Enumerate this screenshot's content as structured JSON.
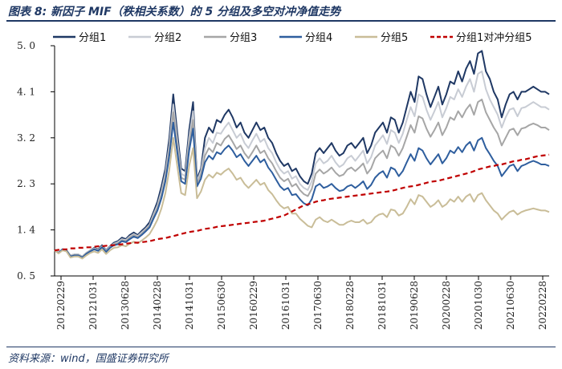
{
  "header": {
    "title": "图表 8:  新因子 MIF（秩相关系数）的 5 分组及多空对冲净值走势"
  },
  "footer": {
    "source": "资料来源：wind，国盛证券研究所"
  },
  "chart_data": {
    "type": "line",
    "title": "新因子 MIF（秩相关系数）的 5 分组及多空对冲净值走势",
    "ylim": [
      0.5,
      5.0
    ],
    "yticks": [
      "5. 0",
      "4. 1",
      "3. 2",
      "2. 3",
      "1. 4",
      "0. 5"
    ],
    "ytick_values": [
      5.0,
      4.1,
      3.2,
      2.3,
      1.4,
      0.5
    ],
    "xticks": [
      "20120229",
      "20121031",
      "20130628",
      "20140228",
      "20141031",
      "20150630",
      "20160229",
      "20161031",
      "20170630",
      "20180228",
      "20181031",
      "20190628",
      "20200228",
      "20201030",
      "20210630",
      "20220228"
    ],
    "x": [
      0,
      1,
      2,
      3,
      4,
      5,
      6,
      7,
      8,
      9,
      10,
      11,
      12,
      13,
      14,
      15,
      16,
      17,
      18,
      19,
      20,
      21,
      22,
      23,
      24,
      25,
      26,
      27,
      28,
      29,
      30,
      31,
      32,
      33,
      34,
      35,
      36,
      37,
      38,
      39,
      40,
      41,
      42,
      43,
      44,
      45,
      46,
      47,
      48,
      49,
      50,
      51,
      52,
      53,
      54,
      55,
      56,
      57,
      58,
      59,
      60,
      61,
      62,
      63,
      64,
      65,
      66,
      67,
      68,
      69,
      70,
      71,
      72,
      73,
      74,
      75,
      76,
      77,
      78,
      79,
      80,
      81,
      82,
      83,
      84,
      85,
      86,
      87,
      88,
      89,
      90,
      91,
      92,
      93,
      94,
      95,
      96,
      97,
      98,
      99,
      100,
      101,
      102,
      103,
      104,
      105,
      106,
      107,
      108,
      109,
      110,
      111,
      112,
      113,
      114,
      115,
      116,
      117,
      118,
      119,
      120,
      121,
      122,
      123,
      124,
      125
    ],
    "series": [
      {
        "name": "分组1",
        "color": "#1f3864",
        "dash": false,
        "values": [
          1.0,
          0.95,
          1.02,
          1.0,
          0.9,
          0.92,
          0.92,
          0.88,
          0.95,
          1.0,
          1.05,
          1.02,
          1.1,
          1.0,
          1.08,
          1.15,
          1.18,
          1.25,
          1.22,
          1.3,
          1.35,
          1.3,
          1.38,
          1.45,
          1.55,
          1.75,
          1.95,
          2.25,
          2.6,
          3.2,
          4.05,
          3.3,
          2.6,
          2.55,
          3.35,
          3.9,
          2.4,
          2.6,
          3.2,
          3.4,
          3.3,
          3.55,
          3.5,
          3.65,
          3.75,
          3.6,
          3.4,
          3.5,
          3.3,
          3.2,
          3.35,
          3.5,
          3.35,
          3.4,
          3.2,
          3.1,
          2.9,
          2.75,
          2.65,
          2.7,
          2.55,
          2.6,
          2.45,
          2.35,
          2.3,
          2.5,
          2.9,
          3.0,
          2.9,
          3.0,
          3.1,
          2.95,
          2.85,
          2.9,
          3.05,
          3.1,
          3.0,
          3.1,
          3.2,
          2.9,
          3.05,
          3.3,
          3.4,
          3.5,
          3.3,
          3.6,
          3.55,
          3.3,
          3.5,
          3.8,
          4.1,
          3.9,
          4.4,
          4.35,
          4.05,
          3.8,
          4.0,
          4.2,
          3.85,
          4.05,
          4.3,
          4.25,
          4.5,
          4.3,
          4.55,
          4.7,
          4.45,
          4.85,
          4.9,
          4.5,
          4.35,
          4.1,
          3.95,
          3.6,
          3.85,
          4.05,
          4.1,
          3.95,
          4.1,
          4.1,
          4.15,
          4.2,
          4.15,
          4.1,
          4.1,
          4.05
        ]
      },
      {
        "name": "分组2",
        "color": "#c8ccd4",
        "dash": false,
        "values": [
          1.0,
          0.95,
          1.02,
          1.0,
          0.9,
          0.92,
          0.92,
          0.88,
          0.95,
          1.0,
          1.04,
          1.01,
          1.08,
          0.99,
          1.07,
          1.13,
          1.16,
          1.22,
          1.2,
          1.27,
          1.32,
          1.28,
          1.35,
          1.42,
          1.5,
          1.7,
          1.88,
          2.15,
          2.5,
          3.05,
          3.85,
          3.15,
          2.5,
          2.45,
          3.2,
          3.72,
          2.35,
          2.55,
          3.0,
          3.2,
          3.1,
          3.3,
          3.28,
          3.4,
          3.5,
          3.35,
          3.2,
          3.28,
          3.1,
          3.0,
          3.15,
          3.28,
          3.12,
          3.18,
          3.0,
          2.9,
          2.72,
          2.58,
          2.5,
          2.55,
          2.4,
          2.45,
          2.3,
          2.22,
          2.18,
          2.35,
          2.7,
          2.8,
          2.7,
          2.75,
          2.85,
          2.72,
          2.63,
          2.68,
          2.8,
          2.85,
          2.75,
          2.85,
          2.95,
          2.7,
          2.82,
          3.05,
          3.15,
          3.25,
          3.08,
          3.35,
          3.3,
          3.1,
          3.28,
          3.55,
          3.8,
          3.62,
          4.05,
          4.0,
          3.75,
          3.55,
          3.72,
          3.9,
          3.6,
          3.78,
          4.0,
          3.95,
          4.15,
          4.0,
          4.2,
          4.35,
          4.1,
          4.45,
          4.5,
          4.15,
          3.95,
          3.8,
          3.65,
          3.4,
          3.6,
          3.75,
          3.78,
          3.62,
          3.78,
          3.8,
          3.85,
          3.9,
          3.85,
          3.8,
          3.8,
          3.75
        ]
      },
      {
        "name": "分组3",
        "color": "#a6a6a6",
        "dash": false,
        "values": [
          1.0,
          0.95,
          1.02,
          1.0,
          0.89,
          0.91,
          0.91,
          0.87,
          0.94,
          0.99,
          1.03,
          1.0,
          1.07,
          0.98,
          1.06,
          1.12,
          1.14,
          1.2,
          1.18,
          1.25,
          1.3,
          1.26,
          1.32,
          1.4,
          1.48,
          1.66,
          1.83,
          2.08,
          2.42,
          2.95,
          3.7,
          3.05,
          2.42,
          2.38,
          3.08,
          3.55,
          2.3,
          2.48,
          2.85,
          3.0,
          2.92,
          3.1,
          3.05,
          3.18,
          3.25,
          3.12,
          2.98,
          3.05,
          2.9,
          2.8,
          2.92,
          3.05,
          2.9,
          2.95,
          2.8,
          2.7,
          2.55,
          2.42,
          2.35,
          2.4,
          2.25,
          2.3,
          2.18,
          2.1,
          2.06,
          2.2,
          2.5,
          2.58,
          2.5,
          2.55,
          2.62,
          2.52,
          2.45,
          2.48,
          2.58,
          2.62,
          2.55,
          2.62,
          2.7,
          2.5,
          2.6,
          2.8,
          2.88,
          2.95,
          2.8,
          3.05,
          3.0,
          2.85,
          3.0,
          3.22,
          3.45,
          3.3,
          3.62,
          3.58,
          3.38,
          3.22,
          3.35,
          3.5,
          3.25,
          3.4,
          3.6,
          3.55,
          3.72,
          3.6,
          3.75,
          3.85,
          3.65,
          3.9,
          3.95,
          3.7,
          3.55,
          3.4,
          3.28,
          3.05,
          3.2,
          3.35,
          3.38,
          3.25,
          3.38,
          3.4,
          3.45,
          3.48,
          3.45,
          3.4,
          3.4,
          3.35
        ]
      },
      {
        "name": "分组4",
        "color": "#2e5e9e",
        "dash": false,
        "values": [
          1.0,
          0.95,
          1.02,
          1.0,
          0.88,
          0.9,
          0.9,
          0.86,
          0.93,
          0.98,
          1.02,
          0.99,
          1.06,
          0.97,
          1.05,
          1.1,
          1.12,
          1.18,
          1.16,
          1.22,
          1.27,
          1.24,
          1.3,
          1.37,
          1.45,
          1.62,
          1.78,
          2.02,
          2.35,
          2.85,
          3.5,
          2.92,
          2.35,
          2.3,
          2.95,
          3.38,
          2.25,
          2.4,
          2.72,
          2.85,
          2.78,
          2.92,
          2.88,
          2.98,
          3.05,
          2.95,
          2.82,
          2.88,
          2.75,
          2.65,
          2.75,
          2.85,
          2.72,
          2.78,
          2.62,
          2.52,
          2.38,
          2.25,
          2.18,
          2.22,
          2.08,
          2.1,
          2.0,
          1.92,
          1.88,
          2.0,
          2.25,
          2.3,
          2.22,
          2.25,
          2.3,
          2.22,
          2.16,
          2.18,
          2.25,
          2.28,
          2.22,
          2.28,
          2.35,
          2.2,
          2.28,
          2.42,
          2.5,
          2.55,
          2.42,
          2.62,
          2.58,
          2.45,
          2.55,
          2.72,
          2.88,
          2.75,
          3.0,
          2.95,
          2.8,
          2.68,
          2.78,
          2.88,
          2.7,
          2.8,
          2.95,
          2.9,
          3.02,
          2.92,
          3.05,
          3.12,
          2.95,
          3.15,
          3.2,
          3.0,
          2.88,
          2.75,
          2.65,
          2.45,
          2.55,
          2.65,
          2.68,
          2.55,
          2.65,
          2.68,
          2.72,
          2.75,
          2.72,
          2.68,
          2.68,
          2.65
        ]
      },
      {
        "name": "分组5",
        "color": "#c9bd98",
        "dash": false,
        "values": [
          1.0,
          0.94,
          1.0,
          0.98,
          0.86,
          0.88,
          0.88,
          0.84,
          0.9,
          0.95,
          0.98,
          0.95,
          1.02,
          0.93,
          1.0,
          1.05,
          1.06,
          1.1,
          1.08,
          1.13,
          1.17,
          1.14,
          1.19,
          1.25,
          1.32,
          1.45,
          1.6,
          1.82,
          2.12,
          2.58,
          3.2,
          2.65,
          2.12,
          2.08,
          2.65,
          3.0,
          2.02,
          2.15,
          2.38,
          2.48,
          2.42,
          2.52,
          2.48,
          2.55,
          2.6,
          2.5,
          2.38,
          2.42,
          2.3,
          2.22,
          2.3,
          2.38,
          2.28,
          2.32,
          2.18,
          2.1,
          1.98,
          1.88,
          1.82,
          1.85,
          1.72,
          1.72,
          1.62,
          1.55,
          1.48,
          1.45,
          1.6,
          1.65,
          1.58,
          1.55,
          1.6,
          1.55,
          1.5,
          1.5,
          1.55,
          1.58,
          1.55,
          1.55,
          1.6,
          1.52,
          1.55,
          1.65,
          1.7,
          1.72,
          1.65,
          1.8,
          1.78,
          1.68,
          1.72,
          1.85,
          2.0,
          1.9,
          2.08,
          2.05,
          1.95,
          1.85,
          1.9,
          1.98,
          1.85,
          1.9,
          2.0,
          1.95,
          2.05,
          1.95,
          2.05,
          2.1,
          1.95,
          2.08,
          2.12,
          1.98,
          1.88,
          1.78,
          1.72,
          1.6,
          1.68,
          1.75,
          1.78,
          1.7,
          1.75,
          1.78,
          1.8,
          1.82,
          1.8,
          1.78,
          1.78,
          1.75
        ]
      },
      {
        "name": "分组1对冲分组5",
        "color": "#c00000",
        "dash": true,
        "values": [
          1.0,
          1.01,
          1.02,
          1.02,
          1.04,
          1.04,
          1.05,
          1.05,
          1.06,
          1.06,
          1.07,
          1.08,
          1.08,
          1.09,
          1.1,
          1.1,
          1.11,
          1.12,
          1.13,
          1.14,
          1.15,
          1.15,
          1.16,
          1.17,
          1.18,
          1.2,
          1.22,
          1.23,
          1.24,
          1.26,
          1.28,
          1.3,
          1.32,
          1.34,
          1.36,
          1.37,
          1.38,
          1.4,
          1.42,
          1.43,
          1.44,
          1.46,
          1.47,
          1.48,
          1.49,
          1.5,
          1.51,
          1.52,
          1.53,
          1.54,
          1.55,
          1.56,
          1.57,
          1.58,
          1.6,
          1.62,
          1.64,
          1.66,
          1.68,
          1.72,
          1.76,
          1.8,
          1.84,
          1.88,
          1.9,
          1.92,
          1.95,
          1.97,
          1.98,
          2.0,
          2.01,
          2.02,
          2.03,
          2.04,
          2.05,
          2.06,
          2.07,
          2.08,
          2.09,
          2.1,
          2.11,
          2.12,
          2.13,
          2.14,
          2.15,
          2.16,
          2.18,
          2.2,
          2.22,
          2.24,
          2.25,
          2.26,
          2.28,
          2.3,
          2.32,
          2.34,
          2.35,
          2.36,
          2.38,
          2.4,
          2.42,
          2.44,
          2.46,
          2.48,
          2.5,
          2.52,
          2.55,
          2.58,
          2.6,
          2.62,
          2.64,
          2.65,
          2.67,
          2.68,
          2.7,
          2.72,
          2.74,
          2.75,
          2.77,
          2.78,
          2.8,
          2.82,
          2.84,
          2.85,
          2.86,
          2.87
        ]
      }
    ]
  }
}
